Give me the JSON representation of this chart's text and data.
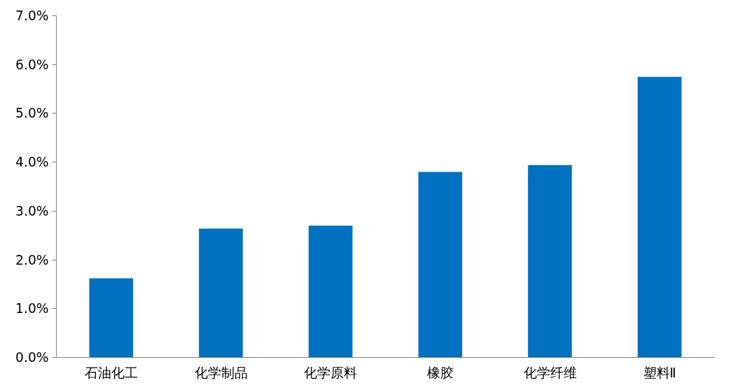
{
  "chart_data": {
    "type": "bar",
    "categories": [
      "石油化工",
      "化学制品",
      "化学原料",
      "橡胶",
      "化学纤维",
      "塑料Ⅱ"
    ],
    "values": [
      1.62,
      2.64,
      2.7,
      3.8,
      3.94,
      5.75
    ],
    "color": "#0070c0",
    "ylim": [
      0,
      7
    ],
    "yticks": [
      {
        "value": 0,
        "label": "0.0%"
      },
      {
        "value": 1,
        "label": "1.0%"
      },
      {
        "value": 2,
        "label": "2.0%"
      },
      {
        "value": 3,
        "label": "3.0%"
      },
      {
        "value": 4,
        "label": "4.0%"
      },
      {
        "value": 5,
        "label": "5.0%"
      },
      {
        "value": 6,
        "label": "6.0%"
      },
      {
        "value": 7,
        "label": "7.0%"
      }
    ],
    "grid": false
  }
}
